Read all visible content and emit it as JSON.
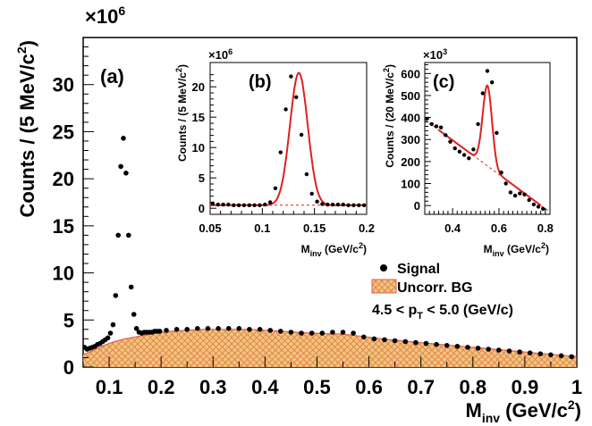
{
  "chart_data": [
    {
      "id": "main",
      "type": "scatter",
      "panel_label": "(a)",
      "xlabel": "M",
      "xlabel_sub": "inv",
      "xlabel_unit": " (GeV/c",
      "xlabel_tail": ")",
      "ylabel": "Counts / (5 MeV/c",
      "ylabel_tail": ")",
      "y_multiplier_base": "×10",
      "y_multiplier_exp": "6",
      "xlim": [
        0.05,
        1.0
      ],
      "ylim": [
        0,
        35
      ],
      "x_ticks": [
        "0.1",
        "0.2",
        "0.3",
        "0.4",
        "0.5",
        "0.6",
        "0.7",
        "0.8",
        "0.9",
        "1"
      ],
      "y_ticks": [
        "0",
        "5",
        "10",
        "15",
        "20",
        "25",
        "30"
      ],
      "series": [
        {
          "name": "Signal",
          "color": "#000000",
          "x": [
            0.0525,
            0.0575,
            0.0625,
            0.0675,
            0.0725,
            0.0775,
            0.0825,
            0.0875,
            0.0925,
            0.0975,
            0.1025,
            0.1075,
            0.1125,
            0.1175,
            0.1225,
            0.1275,
            0.1325,
            0.1375,
            0.1425,
            0.1475,
            0.1525,
            0.1575,
            0.1625,
            0.1675,
            0.1725,
            0.1775,
            0.1825,
            0.1875,
            0.1925,
            0.1975,
            0.21,
            0.23,
            0.25,
            0.27,
            0.29,
            0.31,
            0.33,
            0.35,
            0.37,
            0.39,
            0.41,
            0.43,
            0.45,
            0.47,
            0.49,
            0.51,
            0.53,
            0.55,
            0.57,
            0.59,
            0.61,
            0.63,
            0.65,
            0.67,
            0.69,
            0.71,
            0.73,
            0.75,
            0.77,
            0.79,
            0.81,
            0.83,
            0.85,
            0.87,
            0.89,
            0.91,
            0.93,
            0.95,
            0.97,
            0.99
          ],
          "values": [
            2.1,
            1.9,
            2.0,
            2.1,
            2.2,
            2.4,
            2.5,
            2.7,
            2.9,
            3.1,
            3.6,
            4.5,
            7.6,
            14.0,
            21.3,
            24.3,
            20.6,
            14.0,
            8.5,
            5.6,
            4.1,
            3.7,
            3.6,
            3.7,
            3.7,
            3.7,
            3.7,
            3.8,
            3.8,
            3.8,
            3.9,
            4.0,
            4.0,
            4.1,
            4.1,
            4.1,
            4.1,
            4.1,
            4.0,
            4.0,
            3.9,
            3.8,
            3.7,
            3.6,
            3.6,
            3.6,
            3.7,
            3.7,
            3.6,
            3.2,
            3.0,
            2.9,
            2.8,
            2.7,
            2.6,
            2.5,
            2.4,
            2.3,
            2.2,
            2.1,
            2.0,
            1.9,
            1.8,
            1.7,
            1.6,
            1.5,
            1.4,
            1.3,
            1.2,
            1.1
          ]
        },
        {
          "name": "Uncorr. BG",
          "color": "#e8b86a",
          "edge_color": "#e06050",
          "x": [
            0.05,
            0.07,
            0.09,
            0.11,
            0.13,
            0.15,
            0.17,
            0.19,
            0.22,
            0.25,
            0.28,
            0.31,
            0.34,
            0.37,
            0.4,
            0.43,
            0.46,
            0.49,
            0.52,
            0.55,
            0.58,
            0.61,
            0.64,
            0.67,
            0.7,
            0.73,
            0.76,
            0.79,
            0.82,
            0.85,
            0.88,
            0.91,
            0.94,
            0.97,
            1.0
          ],
          "values": [
            1.3,
            1.8,
            2.3,
            2.7,
            3.0,
            3.2,
            3.4,
            3.6,
            3.8,
            3.9,
            4.0,
            4.0,
            4.0,
            4.0,
            3.9,
            3.8,
            3.7,
            3.6,
            3.55,
            3.5,
            3.3,
            3.1,
            2.9,
            2.75,
            2.6,
            2.45,
            2.3,
            2.15,
            2.0,
            1.85,
            1.7,
            1.55,
            1.4,
            1.25,
            1.1
          ]
        }
      ],
      "legend": [
        {
          "label": "Signal",
          "marker": "dot"
        },
        {
          "label": "Uncorr. BG",
          "marker": "hatched-box"
        }
      ],
      "annotation_pre": "4.5 < p",
      "annotation_sub": "T",
      "annotation_post": " < 5.0 (GeV/c)"
    },
    {
      "id": "inset-b",
      "type": "scatter",
      "panel_label": "(b)",
      "xlabel": "M",
      "xlabel_sub": "inv",
      "xlabel_unit": " (GeV/c",
      "xlabel_tail": ")",
      "ylabel": "Counts / (5 MeV/c",
      "ylabel_tail": ")",
      "y_multiplier_base": "×10",
      "y_multiplier_exp": "6",
      "xlim": [
        0.05,
        0.2
      ],
      "ylim": [
        -1,
        24
      ],
      "x_ticks": [
        "0.05",
        "0.1",
        "0.15",
        "0.2"
      ],
      "y_ticks": [
        "0",
        "5",
        "10",
        "15",
        "20"
      ],
      "fit_color": "#e02020",
      "points": {
        "x": [
          0.0525,
          0.0575,
          0.0625,
          0.0675,
          0.0725,
          0.0775,
          0.0825,
          0.0875,
          0.0925,
          0.0975,
          0.1025,
          0.1075,
          0.1125,
          0.1175,
          0.1225,
          0.1275,
          0.1325,
          0.1375,
          0.1425,
          0.1475,
          0.1525,
          0.1575,
          0.1625,
          0.1675,
          0.1725,
          0.1775,
          0.1825,
          0.1875,
          0.1925,
          0.1975
        ],
        "values": [
          0.8,
          0.6,
          0.6,
          0.6,
          0.5,
          0.5,
          0.5,
          0.5,
          0.5,
          0.5,
          0.6,
          1.0,
          3.3,
          9.2,
          16.3,
          21.7,
          18.3,
          12.1,
          5.6,
          2.4,
          1.1,
          0.7,
          0.6,
          0.6,
          0.6,
          0.6,
          0.5,
          0.5,
          0.5,
          0.5
        ]
      },
      "fit_peak": {
        "mean": 0.135,
        "sigma": 0.0085,
        "amplitude": 21.8,
        "baseline": 0.5
      },
      "bg_level": 0.5
    },
    {
      "id": "inset-c",
      "type": "scatter",
      "panel_label": "(c)",
      "xlabel": "M",
      "xlabel_sub": "inv",
      "xlabel_unit": " (GeV/c",
      "xlabel_tail": ")",
      "ylabel": "Counts / (20 MeV/c",
      "ylabel_tail": ")",
      "y_multiplier_base": "×10",
      "y_multiplier_exp": "3",
      "xlim": [
        0.28,
        0.82
      ],
      "ylim": [
        -40,
        650
      ],
      "x_ticks": [
        "0.4",
        "0.6",
        "0.8"
      ],
      "x_tick_values": [
        0.4,
        0.6,
        0.8
      ],
      "y_ticks": [
        "0",
        "100",
        "200",
        "300",
        "400",
        "500",
        "600"
      ],
      "fit_color": "#e02020",
      "points": {
        "x": [
          0.29,
          0.31,
          0.33,
          0.35,
          0.37,
          0.39,
          0.41,
          0.43,
          0.45,
          0.47,
          0.49,
          0.51,
          0.53,
          0.55,
          0.57,
          0.59,
          0.61,
          0.63,
          0.65,
          0.67,
          0.69,
          0.71,
          0.73,
          0.75,
          0.77,
          0.79,
          0.81
        ],
        "values": [
          395,
          370,
          360,
          355,
          320,
          290,
          260,
          245,
          230,
          215,
          255,
          370,
          510,
          612,
          560,
          330,
          150,
          100,
          60,
          45,
          55,
          50,
          25,
          5,
          -5,
          -15,
          -55
        ]
      },
      "fit_peak": {
        "mean": 0.55,
        "sigma": 0.02,
        "amplitude": 365
      },
      "bg_line": {
        "x0": 0.28,
        "y0": 390,
        "x1": 0.82,
        "y1": -30
      }
    }
  ]
}
